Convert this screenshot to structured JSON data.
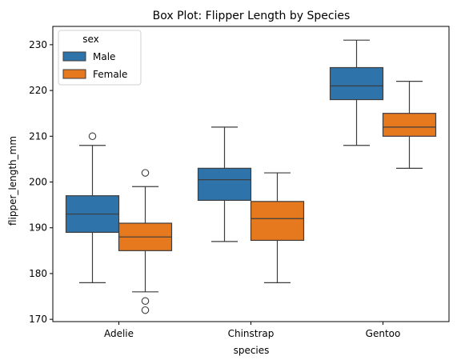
{
  "chart_data": {
    "type": "box",
    "title": "Box Plot: Flipper Length by Species",
    "xlabel": "species",
    "ylabel": "flipper_length_mm",
    "categories": [
      "Adelie",
      "Chinstrap",
      "Gentoo"
    ],
    "ylim": [
      169.5,
      234
    ],
    "yticks": [
      170,
      180,
      190,
      200,
      210,
      220,
      230
    ],
    "grid": false,
    "legend": {
      "title": "sex",
      "placement": "top-left"
    },
    "series": [
      {
        "name": "Male",
        "color": "#2f73ab",
        "boxes": [
          {
            "category": "Adelie",
            "whisker_low": 178,
            "q1": 189,
            "median": 193,
            "q3": 197,
            "whisker_high": 208,
            "outliers": [
              210
            ]
          },
          {
            "category": "Chinstrap",
            "whisker_low": 187,
            "q1": 196,
            "median": 200.5,
            "q3": 203,
            "whisker_high": 212,
            "outliers": []
          },
          {
            "category": "Gentoo",
            "whisker_low": 208,
            "q1": 218,
            "median": 221,
            "q3": 225,
            "whisker_high": 231,
            "outliers": []
          }
        ]
      },
      {
        "name": "Female",
        "color": "#e6781e",
        "boxes": [
          {
            "category": "Adelie",
            "whisker_low": 176,
            "q1": 185,
            "median": 188,
            "q3": 191,
            "whisker_high": 199,
            "outliers": [
              202,
              174,
              172
            ]
          },
          {
            "category": "Chinstrap",
            "whisker_low": 178,
            "q1": 187.25,
            "median": 192,
            "q3": 195.75,
            "whisker_high": 202,
            "outliers": []
          },
          {
            "category": "Gentoo",
            "whisker_low": 203,
            "q1": 210,
            "median": 212,
            "q3": 215,
            "whisker_high": 222,
            "outliers": []
          }
        ]
      }
    ]
  }
}
